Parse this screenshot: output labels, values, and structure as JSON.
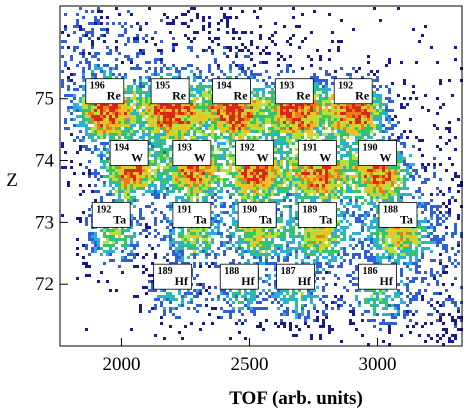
{
  "chart_data": {
    "type": "heatmap",
    "xlabel": "TOF (arb. units)",
    "ylabel": "Z",
    "xlim": [
      1760,
      3330
    ],
    "ylim": [
      71.0,
      76.5
    ],
    "x_ticks": [
      2000,
      2500,
      3000
    ],
    "y_ticks": [
      72,
      73,
      74,
      75
    ],
    "colormap": [
      "#1a1a8c",
      "#2f5fd8",
      "#2ab0d8",
      "#34c46a",
      "#b6e03a",
      "#f0c020",
      "#f07a1a",
      "#d8281a"
    ],
    "isotopes": [
      {
        "mass": "196",
        "element": "Re",
        "z": 75,
        "x": 1935
      },
      {
        "mass": "195",
        "element": "Re",
        "z": 75,
        "x": 2190
      },
      {
        "mass": "194",
        "element": "Re",
        "z": 75,
        "x": 2430
      },
      {
        "mass": "193",
        "element": "Re",
        "z": 75,
        "x": 2675
      },
      {
        "mass": "192",
        "element": "Re",
        "z": 75,
        "x": 2905
      },
      {
        "mass": "194",
        "element": "W",
        "z": 74,
        "x": 2030
      },
      {
        "mass": "193",
        "element": "W",
        "z": 74,
        "x": 2275
      },
      {
        "mass": "192",
        "element": "W",
        "z": 74,
        "x": 2520
      },
      {
        "mass": "191",
        "element": "W",
        "z": 74,
        "x": 2765
      },
      {
        "mass": "190",
        "element": "W",
        "z": 74,
        "x": 3000
      },
      {
        "mass": "192",
        "element": "Ta",
        "z": 73,
        "x": 1960
      },
      {
        "mass": "191",
        "element": "Ta",
        "z": 73,
        "x": 2275
      },
      {
        "mass": "190",
        "element": "Ta",
        "z": 73,
        "x": 2530
      },
      {
        "mass": "189",
        "element": "Ta",
        "z": 73,
        "x": 2765
      },
      {
        "mass": "188",
        "element": "Ta",
        "z": 73,
        "x": 3080
      },
      {
        "mass": "189",
        "element": "Hf",
        "z": 72,
        "x": 2200
      },
      {
        "mass": "188",
        "element": "Hf",
        "z": 72,
        "x": 2460
      },
      {
        "mass": "187",
        "element": "Hf",
        "z": 72,
        "x": 2680
      },
      {
        "mass": "186",
        "element": "Hf",
        "z": 72,
        "x": 3000
      }
    ]
  }
}
